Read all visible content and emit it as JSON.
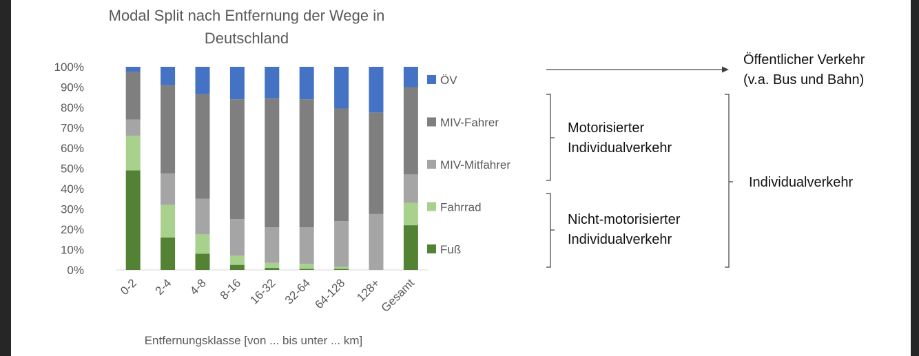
{
  "chart_data": {
    "type": "bar",
    "stacked": true,
    "title_lines": [
      "Modal Split nach Entfernung der Wege in",
      "Deutschland"
    ],
    "xlabel": "Entfernungsklasse [von ... bis unter ... km]",
    "ylabel": "",
    "ylim": [
      0,
      100
    ],
    "yticks": [
      "0%",
      "10%",
      "20%",
      "30%",
      "40%",
      "50%",
      "60%",
      "70%",
      "80%",
      "90%",
      "100%"
    ],
    "categories": [
      "0-2",
      "2-4",
      "4-8",
      "8-16",
      "16-32",
      "32-64",
      "64-128",
      "128+",
      "Gesamt"
    ],
    "series": [
      {
        "name": "Fuß",
        "color": "#548235",
        "values": [
          49,
          16,
          8,
          2.5,
          1,
          0.5,
          0.5,
          0,
          22
        ]
      },
      {
        "name": "Fahrrad",
        "color": "#a9d18e",
        "values": [
          17,
          16,
          9.5,
          4.5,
          2.5,
          2.5,
          1,
          0,
          11
        ]
      },
      {
        "name": "MIV-Mitfahrer",
        "color": "#a5a5a5",
        "values": [
          8,
          15.5,
          17.5,
          18,
          17.5,
          18,
          22.5,
          27.5,
          14
        ]
      },
      {
        "name": "MIV-Fahrer",
        "color": "#7f7f7f",
        "values": [
          23.5,
          43.5,
          51.5,
          59,
          63.5,
          63,
          55.5,
          50,
          43
        ]
      },
      {
        "name": "ÖV",
        "color": "#4472c4",
        "values": [
          2.5,
          9,
          13.5,
          16,
          15.5,
          16,
          20.5,
          22.5,
          10
        ]
      }
    ],
    "legend_position": "right",
    "legend_order": [
      "ÖV",
      "MIV-Fahrer",
      "MIV-Mitfahrer",
      "Fahrrad",
      "Fuß"
    ]
  },
  "annotations": {
    "oev": [
      "Öffentlicher Verkehr",
      "(v.a. Bus und Bahn)"
    ],
    "motorisiert": [
      "Motorisierter",
      "Individualverkehr"
    ],
    "nicht_motorisiert": [
      "Nicht-motorisierter",
      "Individualverkehr"
    ],
    "individual": "Individualverkehr"
  },
  "colors": {
    "axis": "#d9d9d9",
    "text": "#595959",
    "bracket": "#404040"
  }
}
